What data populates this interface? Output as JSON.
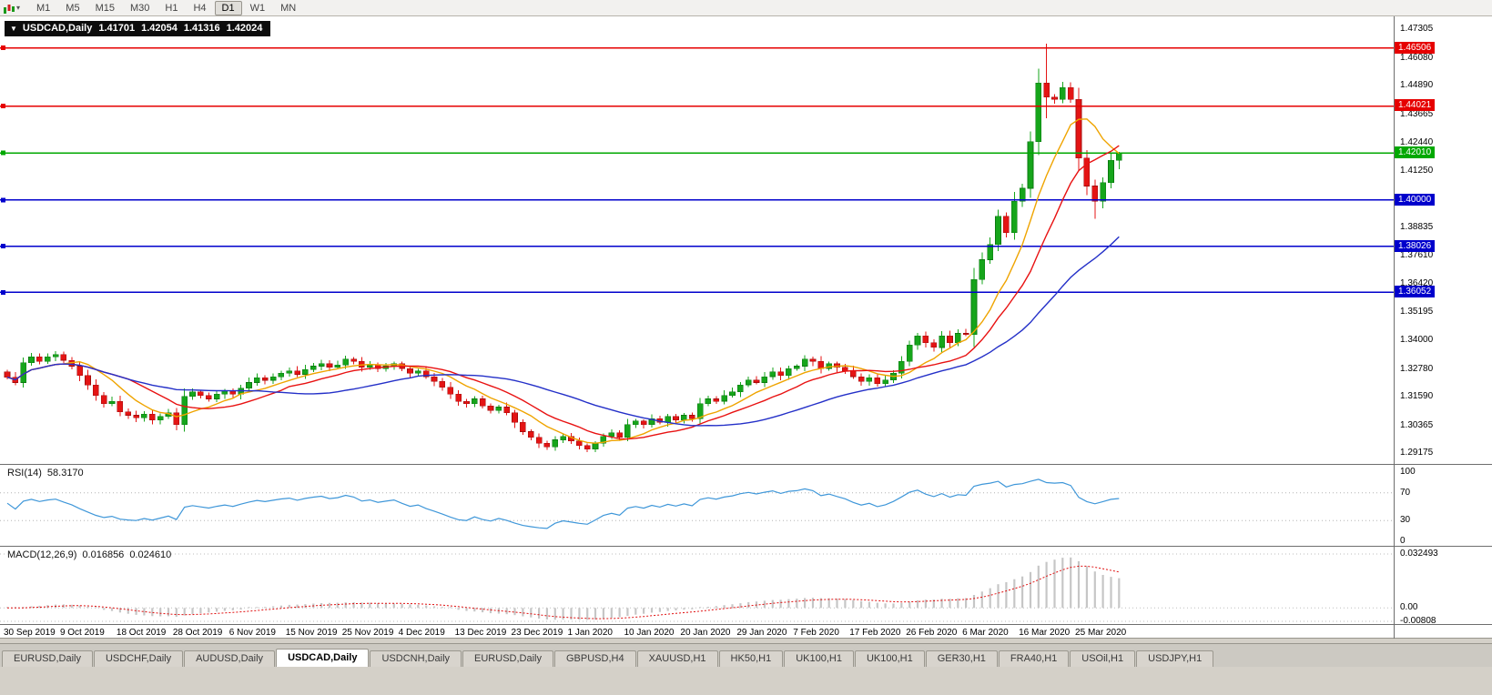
{
  "toolbar": {
    "caret": "▾",
    "timeframes": [
      "M1",
      "M5",
      "M15",
      "M30",
      "H1",
      "H4",
      "D1",
      "W1",
      "MN"
    ],
    "active_timeframe": "D1"
  },
  "chart_header": {
    "collapse_icon": "▼",
    "symbol": "USDCAD,Daily",
    "open": "1.41701",
    "high": "1.42054",
    "low": "1.41316",
    "close": "1.42024"
  },
  "indicators": {
    "rsi": {
      "name": "RSI(14)",
      "value": "58.3170",
      "period": 14,
      "axis_labels": [
        100,
        70,
        30,
        0
      ],
      "dotted_levels": [
        70,
        30
      ],
      "line_color": "#3f97d9"
    },
    "macd": {
      "name": "MACD(12,26,9)",
      "main": "0.016856",
      "signal": "0.024610",
      "fast": 12,
      "slow": 26,
      "signal_period": 9,
      "axis_labels": [
        {
          "label": "0.032493",
          "value": 0.032493
        },
        {
          "label": "0.00",
          "value": 0
        },
        {
          "label": "-0.00808",
          "value": -0.00808
        }
      ],
      "histogram_color": "#c6c6c6",
      "signal_color": "#e01010"
    }
  },
  "chart_data": {
    "type": "candlestick",
    "symbol": "USDCAD",
    "timeframe": "Daily",
    "y_range": [
      1.2872,
      1.4785
    ],
    "price_axis_labels": [
      1.47305,
      1.4608,
      1.4489,
      1.43665,
      1.4244,
      1.4125,
      1.38835,
      1.3761,
      1.3642,
      1.35195,
      1.34,
      1.3278,
      1.3159,
      1.30365,
      1.29175
    ],
    "levels": [
      {
        "value": 1.46506,
        "color": "#e60000"
      },
      {
        "value": 1.44021,
        "color": "#e60000"
      },
      {
        "value": 1.4201,
        "color": "#00a800"
      },
      {
        "value": 1.4,
        "color": "#0000cc"
      },
      {
        "value": 1.38026,
        "color": "#0000cc"
      },
      {
        "value": 1.36052,
        "color": "#0000cc"
      }
    ],
    "moving_averages": [
      {
        "period": 8,
        "color": "#efa400"
      },
      {
        "period": 14,
        "color": "#e81212"
      },
      {
        "period": 30,
        "color": "#2430c8"
      }
    ],
    "colors": {
      "up": "#16a51b",
      "up_border": "#0b7a10",
      "down": "#e41414",
      "down_border": "#a40c0c"
    },
    "x_labels": [
      "30 Sep 2019",
      "9 Oct 2019",
      "18 Oct 2019",
      "28 Oct 2019",
      "6 Nov 2019",
      "15 Nov 2019",
      "25 Nov 2019",
      "4 Dec 2019",
      "13 Dec 2019",
      "23 Dec 2019",
      "1 Jan 2020",
      "10 Jan 2020",
      "20 Jan 2020",
      "29 Jan 2020",
      "7 Feb 2020",
      "17 Feb 2020",
      "26 Feb 2020",
      "6 Mar 2020",
      "16 Mar 2020",
      "25 Mar 2020"
    ],
    "x_label_interval": 7,
    "first_open": 1.3265,
    "closes": [
      1.3243,
      1.322,
      1.3305,
      1.333,
      1.331,
      1.333,
      1.334,
      1.3315,
      1.329,
      1.325,
      1.321,
      1.3165,
      1.313,
      1.314,
      1.3095,
      1.308,
      1.307,
      1.3085,
      1.306,
      1.3075,
      1.309,
      1.304,
      1.316,
      1.318,
      1.3165,
      1.315,
      1.317,
      1.3185,
      1.317,
      1.3195,
      1.322,
      1.324,
      1.323,
      1.3245,
      1.326,
      1.327,
      1.3255,
      1.3275,
      1.329,
      1.33,
      1.3285,
      1.3295,
      1.332,
      1.331,
      1.3285,
      1.3295,
      1.328,
      1.329,
      1.33,
      1.328,
      1.326,
      1.327,
      1.3245,
      1.3225,
      1.32,
      1.317,
      1.314,
      1.313,
      1.315,
      1.312,
      1.31,
      1.3115,
      1.309,
      1.305,
      1.301,
      1.2985,
      1.296,
      1.2945,
      1.2975,
      1.299,
      1.297,
      1.295,
      1.2935,
      1.296,
      1.299,
      1.3005,
      1.2985,
      1.304,
      1.3055,
      1.304,
      1.3065,
      1.305,
      1.3075,
      1.306,
      1.308,
      1.3065,
      1.313,
      1.315,
      1.314,
      1.3165,
      1.318,
      1.321,
      1.323,
      1.322,
      1.3245,
      1.3265,
      1.325,
      1.328,
      1.329,
      1.332,
      1.331,
      1.328,
      1.33,
      1.3285,
      1.327,
      1.3245,
      1.3225,
      1.324,
      1.3215,
      1.323,
      1.326,
      1.331,
      1.338,
      1.342,
      1.339,
      1.337,
      1.342,
      1.339,
      1.343,
      1.3425,
      1.366,
      1.3745,
      1.381,
      1.393,
      1.386,
      1.3995,
      1.405,
      1.425,
      1.45,
      1.444,
      1.443,
      1.448,
      1.443,
      1.418,
      1.406,
      1.3995,
      1.4075,
      1.417,
      1.42024
    ],
    "overrides": {
      "129": {
        "h": 1.4668,
        "l": 1.435
      },
      "135": {
        "l": 1.392
      },
      "138": {
        "o": 1.41701,
        "h": 1.42054,
        "l": 1.41316,
        "c": 1.42024
      }
    }
  },
  "tabs": {
    "items": [
      "EURUSD,Daily",
      "USDCHF,Daily",
      "AUDUSD,Daily",
      "USDCAD,Daily",
      "USDCNH,Daily",
      "EURUSD,Daily",
      "GBPUSD,H4",
      "XAUUSD,H1",
      "HK50,H1",
      "UK100,H1",
      "UK100,H1",
      "GER30,H1",
      "FRA40,H1",
      "USOil,H1",
      "USDJPY,H1"
    ],
    "active_index": 3
  }
}
